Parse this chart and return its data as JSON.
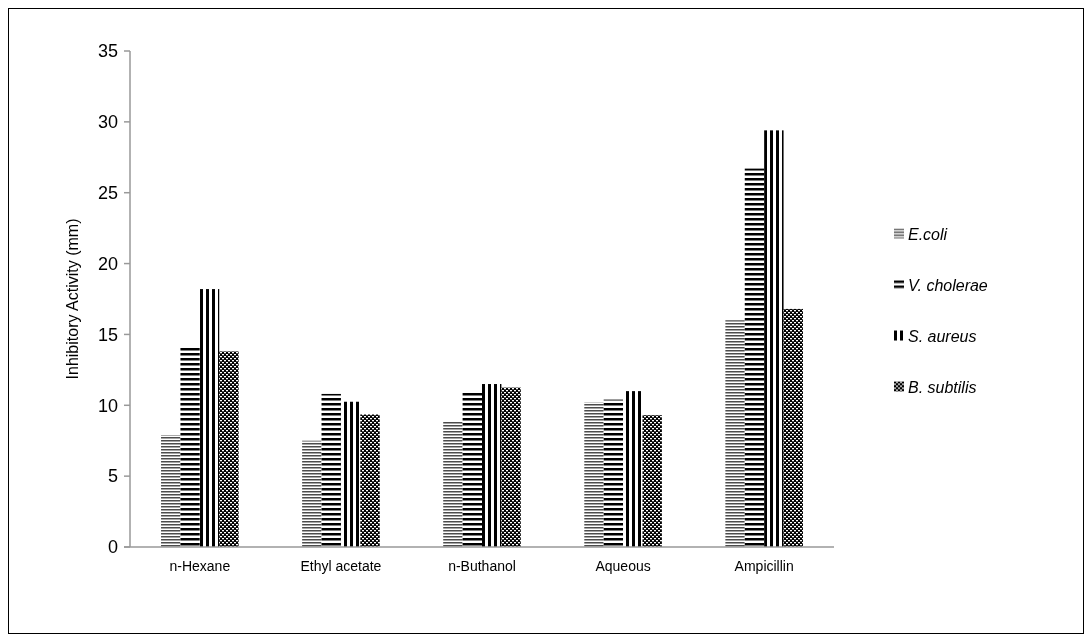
{
  "chart_data": {
    "type": "bar",
    "ylabel": "Inhibitory Activity (mm)",
    "categories": [
      "n-Hexane",
      "Ethyl acetate",
      "n-Buthanol",
      "Aqueous",
      "Ampicillin"
    ],
    "series": [
      {
        "name": "E.coli",
        "color": "#000000",
        "values": [
          7.9,
          7.5,
          8.85,
          10.2,
          16.0
        ]
      },
      {
        "name": "V. cholerae",
        "color": "#000000",
        "values": [
          14.15,
          10.8,
          10.95,
          10.4,
          26.7
        ]
      },
      {
        "name": "S. aureus",
        "color": "#000000",
        "values": [
          18.2,
          10.25,
          11.5,
          11.0,
          29.4
        ]
      },
      {
        "name": "B. subtilis",
        "color": "#000000",
        "values": [
          13.8,
          9.35,
          11.25,
          9.3,
          16.8
        ]
      }
    ],
    "ylim": [
      0,
      35
    ],
    "yticks": [
      0,
      5,
      10,
      15,
      20,
      25,
      30,
      35
    ],
    "legend": "right",
    "grid": false
  }
}
